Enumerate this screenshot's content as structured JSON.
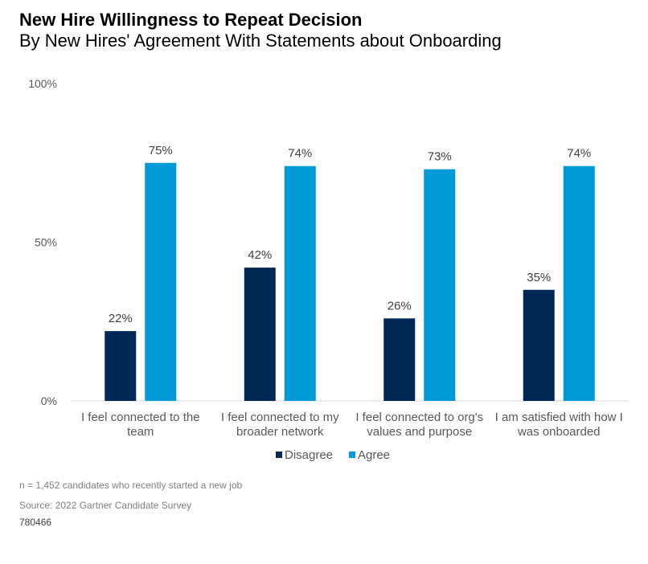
{
  "title": "New Hire Willingness to Repeat Decision",
  "subtitle": "By New Hires' Agreement With Statements about Onboarding",
  "colors": {
    "disagree": "#002856",
    "agree": "#009ad9",
    "axis_text": "#595959",
    "label_text": "#404040"
  },
  "chart_data": {
    "type": "bar",
    "categories": [
      [
        "I feel connected to the",
        "team"
      ],
      [
        "I feel connected to my",
        "broader network"
      ],
      [
        "I feel connected to org's",
        "values and purpose"
      ],
      [
        "I am satisfied with how I",
        "was onboarded"
      ]
    ],
    "series": [
      {
        "name": "Disagree",
        "values": [
          22,
          42,
          26,
          35
        ]
      },
      {
        "name": "Agree",
        "values": [
          75,
          74,
          73,
          74
        ]
      }
    ],
    "data_labels": [
      [
        "22%",
        "42%",
        "26%",
        "35%"
      ],
      [
        "75%",
        "74%",
        "73%",
        "74%"
      ]
    ],
    "yticks": [
      "0%",
      "50%",
      "100%"
    ],
    "ylim": [
      0,
      100
    ],
    "legend_position": "bottom",
    "grid": false
  },
  "footnote": "n = 1,452 candidates who recently started a new job",
  "source": "Source: 2022 Gartner Candidate Survey",
  "code": "780466"
}
